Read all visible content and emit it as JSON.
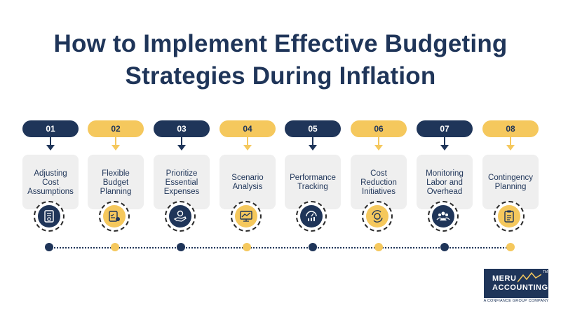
{
  "title": {
    "line1": "How to Implement Effective Budgeting",
    "line2": "Strategies During Inflation"
  },
  "steps": [
    {
      "number": "01",
      "label": "Adjusting\nCost\nAssumptions",
      "icon": "document-dollar-icon",
      "theme": "navy"
    },
    {
      "number": "02",
      "label": "Flexible\nBudget\nPlanning",
      "icon": "budget-checklist-icon",
      "theme": "gold"
    },
    {
      "number": "03",
      "label": "Prioritize\nEssential\nExpenses",
      "icon": "hand-coin-icon",
      "theme": "navy"
    },
    {
      "number": "04",
      "label": "Scenario\nAnalysis",
      "icon": "chart-analysis-icon",
      "theme": "gold"
    },
    {
      "number": "05",
      "label": "Performance\nTracking",
      "icon": "gauge-bars-icon",
      "theme": "navy"
    },
    {
      "number": "06",
      "label": "Cost\nReduction\nInitiatives",
      "icon": "coin-arrows-icon",
      "theme": "gold"
    },
    {
      "number": "07",
      "label": "Monitoring\nLabor and\nOverhead",
      "icon": "team-icon",
      "theme": "navy"
    },
    {
      "number": "08",
      "label": "Contingency\nPlanning",
      "icon": "clipboard-plan-icon",
      "theme": "gold"
    }
  ],
  "colors": {
    "navy": "#1f3559",
    "gold": "#f5c85d",
    "card": "#efefef"
  },
  "logo": {
    "line1": "MERU",
    "line2": "ACCOUNTING",
    "tm": "TM",
    "tagline": "A CONFIANCE GROUP COMPANY"
  }
}
